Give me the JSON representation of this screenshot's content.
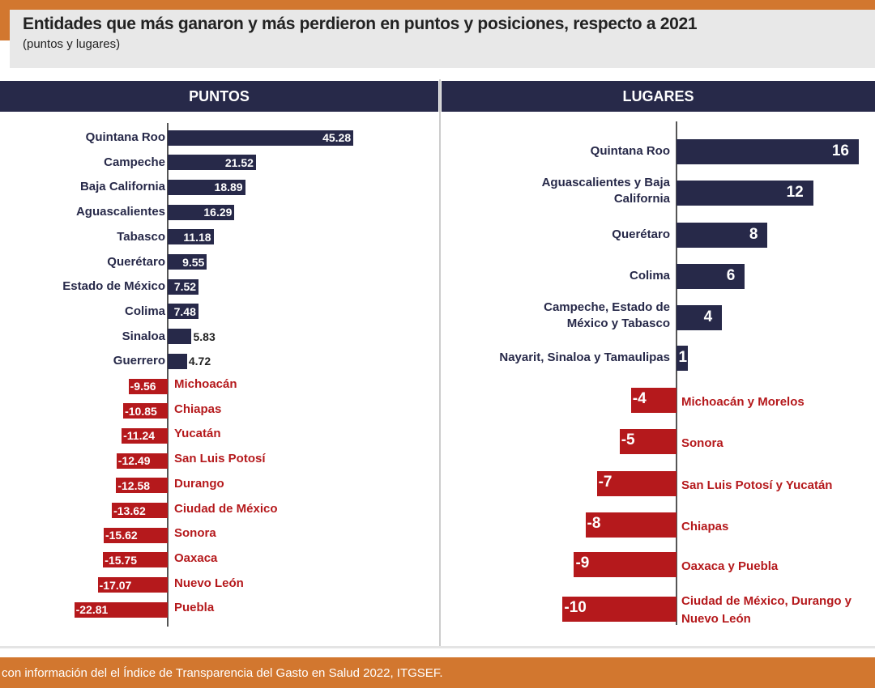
{
  "colors": {
    "positive": "#272949",
    "negative": "#b5191c",
    "accent": "#d2772f",
    "title_box": "#e8e8e8"
  },
  "title": "Entidades que más ganaron y más perdieron en  puntos y posiciones, respecto a 2021",
  "subtitle": "(puntos y lugares)",
  "footer": "con información del el Índice de Transparencia  del  Gasto en Salud 2022, ITGSEF.",
  "chart_data": [
    {
      "type": "bar",
      "orientation": "horizontal",
      "title": "PUNTOS",
      "categories": [
        "Quintana Roo",
        "Campeche",
        "Baja California",
        "Aguascalientes",
        "Tabasco",
        "Querétaro",
        "Estado de México",
        "Colima",
        "Sinaloa",
        "Guerrero",
        "Michoacán",
        "Chiapas",
        "Yucatán",
        "San Luis Potosí",
        "Durango",
        "Ciudad de México",
        "Sonora",
        "Oaxaca",
        "Nuevo León",
        "Puebla"
      ],
      "values": [
        45.28,
        21.52,
        18.89,
        16.29,
        11.18,
        9.55,
        7.52,
        7.48,
        5.83,
        4.72,
        -9.56,
        -10.85,
        -11.24,
        -12.49,
        -12.58,
        -13.62,
        -15.62,
        -15.75,
        -17.07,
        -22.81
      ],
      "labels": [
        "45.28",
        "21.52",
        "18.89",
        "16.29",
        "11.18",
        "9.55",
        "7.52",
        "7.48",
        "5.83",
        "4.72",
        "-9.56",
        "-10.85",
        "-11.24",
        "-12.49",
        "-12.58",
        "-13.62",
        "-15.62",
        "-15.75",
        "-17.07",
        "-22.81"
      ],
      "grid": false
    },
    {
      "type": "bar",
      "orientation": "horizontal",
      "title": "LUGARES",
      "categories": [
        "Quintana Roo",
        "Aguascalientes y Baja California",
        "Querétaro",
        "Colima",
        "Campeche, Estado de México y Tabasco",
        "Nayarit, Sinaloa y Tamaulipas",
        "Michoacán y Morelos",
        "Sonora",
        "San Luis Potosí y Yucatán",
        "Chiapas",
        "Oaxaca y Puebla",
        "Ciudad de México, Durango y Nuevo León"
      ],
      "values": [
        16,
        12,
        8,
        6,
        4,
        1,
        -4,
        -5,
        -7,
        -8,
        -9,
        -10
      ],
      "labels": [
        "16",
        "12",
        "8",
        "6",
        "4",
        "1",
        "-4",
        "-5",
        "-7",
        "-8",
        "-9",
        "-10"
      ],
      "grid": false
    }
  ]
}
